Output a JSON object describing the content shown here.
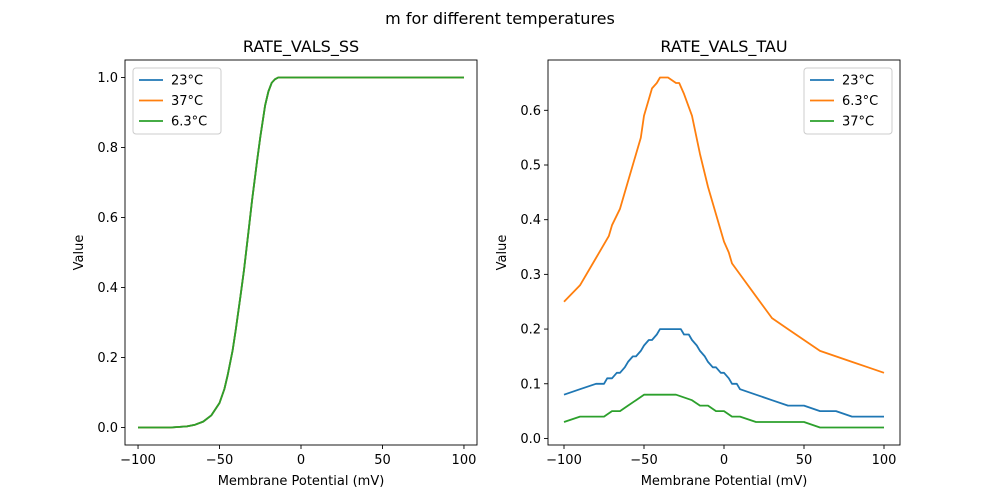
{
  "figure": {
    "suptitle": "m for different temperatures"
  },
  "chart_data": [
    {
      "type": "line",
      "title": "RATE_VALS_SS",
      "xlabel": "Membrane Potential (mV)",
      "ylabel": "Value",
      "xlim": [
        -108,
        108
      ],
      "ylim": [
        -0.05,
        1.05
      ],
      "xticks": [
        -100,
        -50,
        0,
        50,
        100
      ],
      "yticks": [
        0.0,
        0.2,
        0.4,
        0.6,
        0.8,
        1.0
      ],
      "xtick_labels": [
        "−100",
        "−50",
        "0",
        "50",
        "100"
      ],
      "ytick_labels": [
        "0.0",
        "0.2",
        "0.4",
        "0.6",
        "0.8",
        "1.0"
      ],
      "grid": false,
      "legend_position": "top-left",
      "series": [
        {
          "name": "23°C",
          "color": "#1f77b4",
          "x": [
            -100,
            -80,
            -70,
            -65,
            -60,
            -55,
            -50,
            -47,
            -45,
            -42,
            -40,
            -37,
            -35,
            -32,
            -30,
            -27,
            -25,
            -22,
            -20,
            -18,
            -16,
            -14,
            -10,
            0,
            50,
            100
          ],
          "y": [
            0.0,
            0.0,
            0.003,
            0.008,
            0.017,
            0.035,
            0.07,
            0.11,
            0.15,
            0.22,
            0.28,
            0.38,
            0.45,
            0.57,
            0.65,
            0.76,
            0.83,
            0.92,
            0.96,
            0.985,
            0.995,
            1.0,
            1.0,
            1.0,
            1.0,
            1.0
          ]
        },
        {
          "name": "37°C",
          "color": "#ff7f0e",
          "x": [
            -100,
            -80,
            -70,
            -65,
            -60,
            -55,
            -50,
            -47,
            -45,
            -42,
            -40,
            -37,
            -35,
            -32,
            -30,
            -27,
            -25,
            -22,
            -20,
            -18,
            -16,
            -14,
            -10,
            0,
            50,
            100
          ],
          "y": [
            0.0,
            0.0,
            0.003,
            0.008,
            0.017,
            0.035,
            0.07,
            0.11,
            0.15,
            0.22,
            0.28,
            0.38,
            0.45,
            0.57,
            0.65,
            0.76,
            0.83,
            0.92,
            0.96,
            0.985,
            0.995,
            1.0,
            1.0,
            1.0,
            1.0,
            1.0
          ]
        },
        {
          "name": "6.3°C",
          "color": "#2ca02c",
          "x": [
            -100,
            -80,
            -70,
            -65,
            -60,
            -55,
            -50,
            -47,
            -45,
            -42,
            -40,
            -37,
            -35,
            -32,
            -30,
            -27,
            -25,
            -22,
            -20,
            -18,
            -16,
            -14,
            -10,
            0,
            50,
            100
          ],
          "y": [
            0.0,
            0.0,
            0.003,
            0.008,
            0.017,
            0.035,
            0.07,
            0.11,
            0.15,
            0.22,
            0.28,
            0.38,
            0.45,
            0.57,
            0.65,
            0.76,
            0.83,
            0.92,
            0.96,
            0.985,
            0.995,
            1.0,
            1.0,
            1.0,
            1.0,
            1.0
          ]
        }
      ]
    },
    {
      "type": "line",
      "title": "RATE_VALS_TAU",
      "xlabel": "Membrane Potential (mV)",
      "ylabel": "Value",
      "xlim": [
        -110,
        110
      ],
      "ylim": [
        -0.012,
        0.692
      ],
      "xticks": [
        -100,
        -50,
        0,
        50,
        100
      ],
      "yticks": [
        0.0,
        0.1,
        0.2,
        0.3,
        0.4,
        0.5,
        0.6
      ],
      "xtick_labels": [
        "−100",
        "−50",
        "0",
        "50",
        "100"
      ],
      "ytick_labels": [
        "0.0",
        "0.1",
        "0.2",
        "0.3",
        "0.4",
        "0.5",
        "0.6"
      ],
      "grid": false,
      "legend_position": "top-right",
      "series": [
        {
          "name": "23°C",
          "color": "#1f77b4",
          "x": [
            -100,
            -90,
            -80,
            -75,
            -73,
            -70,
            -67,
            -65,
            -62,
            -60,
            -57,
            -55,
            -52,
            -50,
            -47,
            -45,
            -42,
            -40,
            -35,
            -30,
            -27,
            -25,
            -22,
            -20,
            -17,
            -15,
            -12,
            -10,
            -7,
            -5,
            -2,
            0,
            3,
            5,
            8,
            10,
            20,
            30,
            40,
            50,
            60,
            70,
            80,
            90,
            100
          ],
          "y": [
            0.08,
            0.09,
            0.1,
            0.1,
            0.11,
            0.11,
            0.12,
            0.12,
            0.13,
            0.14,
            0.15,
            0.15,
            0.16,
            0.17,
            0.18,
            0.18,
            0.19,
            0.2,
            0.2,
            0.2,
            0.2,
            0.19,
            0.19,
            0.18,
            0.17,
            0.16,
            0.15,
            0.14,
            0.13,
            0.13,
            0.12,
            0.12,
            0.11,
            0.1,
            0.1,
            0.09,
            0.08,
            0.07,
            0.06,
            0.06,
            0.05,
            0.05,
            0.04,
            0.04,
            0.04
          ]
        },
        {
          "name": "6.3°C",
          "color": "#ff7f0e",
          "x": [
            -100,
            -90,
            -80,
            -72,
            -70,
            -65,
            -60,
            -55,
            -52,
            -50,
            -47,
            -45,
            -42,
            -40,
            -38,
            -35,
            -30,
            -28,
            -25,
            -20,
            -15,
            -10,
            -5,
            0,
            3,
            5,
            10,
            20,
            30,
            40,
            50,
            60,
            70,
            80,
            90,
            100
          ],
          "y": [
            0.25,
            0.28,
            0.33,
            0.37,
            0.39,
            0.42,
            0.47,
            0.52,
            0.55,
            0.59,
            0.62,
            0.64,
            0.65,
            0.66,
            0.66,
            0.66,
            0.65,
            0.65,
            0.63,
            0.59,
            0.52,
            0.46,
            0.41,
            0.36,
            0.34,
            0.32,
            0.3,
            0.26,
            0.22,
            0.2,
            0.18,
            0.16,
            0.15,
            0.14,
            0.13,
            0.12
          ],
          "y_note": ""
        },
        {
          "name": "37°C",
          "color": "#2ca02c",
          "x": [
            -100,
            -90,
            -80,
            -75,
            -70,
            -65,
            -60,
            -55,
            -50,
            -45,
            -40,
            -30,
            -20,
            -15,
            -10,
            -5,
            0,
            5,
            10,
            20,
            30,
            40,
            50,
            60,
            70,
            80,
            90,
            100
          ],
          "y": [
            0.03,
            0.04,
            0.04,
            0.04,
            0.05,
            0.05,
            0.06,
            0.07,
            0.08,
            0.08,
            0.08,
            0.08,
            0.07,
            0.06,
            0.06,
            0.05,
            0.05,
            0.04,
            0.04,
            0.03,
            0.03,
            0.03,
            0.03,
            0.02,
            0.02,
            0.02,
            0.02,
            0.02
          ]
        }
      ]
    }
  ]
}
